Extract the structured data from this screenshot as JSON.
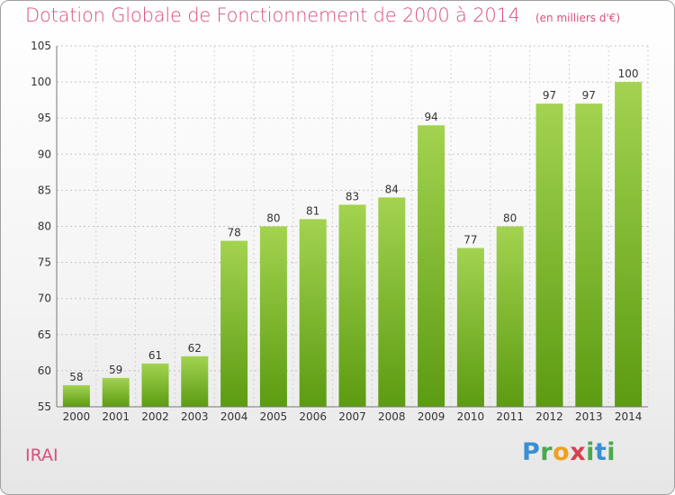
{
  "header": {
    "title": "Dotation Globale de Fonctionnement de 2000 à 2014",
    "unit": "(en milliers d'€)"
  },
  "footer": {
    "place": "IRAI",
    "logo": "Proxiti"
  },
  "colors": {
    "accent": "#d8507e",
    "bar_top": "#9fd04a",
    "bar_bottom": "#5e9e14",
    "grid": "#b8b8b8"
  },
  "chart_data": {
    "type": "bar",
    "title": "Dotation Globale de Fonctionnement de 2000 à 2014",
    "subtitle": "(en milliers d'€)",
    "xlabel": "",
    "ylabel": "",
    "categories": [
      "2000",
      "2001",
      "2002",
      "2003",
      "2004",
      "2005",
      "2006",
      "2007",
      "2008",
      "2009",
      "2010",
      "2011",
      "2012",
      "2013",
      "2014"
    ],
    "values": [
      58,
      59,
      61,
      62,
      78,
      80,
      81,
      83,
      84,
      94,
      77,
      80,
      97,
      97,
      100
    ],
    "ylim": [
      55,
      105
    ],
    "yticks": [
      55,
      60,
      65,
      70,
      75,
      80,
      85,
      90,
      95,
      100,
      105
    ],
    "grid": true,
    "legend": "none"
  }
}
